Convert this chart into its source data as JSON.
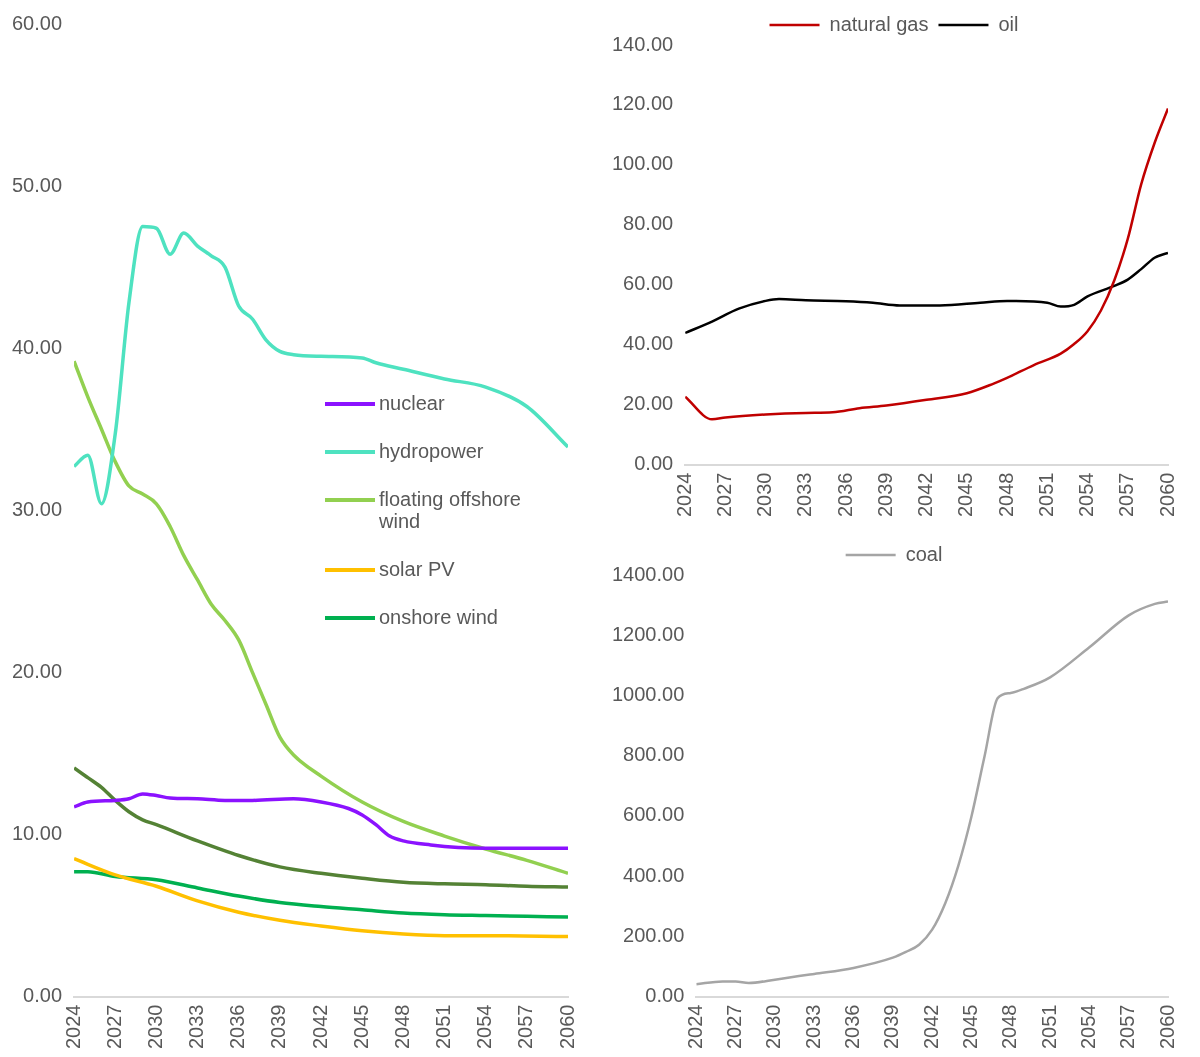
{
  "chart_data": [
    {
      "type": "line",
      "xlim": [
        2024,
        2060
      ],
      "xticks": [
        2024,
        2027,
        2030,
        2033,
        2036,
        2039,
        2042,
        2045,
        2048,
        2051,
        2054,
        2057,
        2060
      ],
      "ylim": [
        0,
        60
      ],
      "yticks": [
        {
          "value": 0,
          "label": "0.00"
        },
        {
          "value": 10,
          "label": "10.00"
        },
        {
          "value": 20,
          "label": "20.00"
        },
        {
          "value": 30,
          "label": "30.00"
        },
        {
          "value": 40,
          "label": "40.00"
        },
        {
          "value": 50,
          "label": "50.00"
        },
        {
          "value": 60,
          "label": "60.00"
        }
      ],
      "grid": false,
      "legend": "center right",
      "series": [
        {
          "name": "nuclear",
          "color": "#8b12ff",
          "x": [
            2024,
            2025,
            2027,
            2028,
            2029,
            2030,
            2031,
            2033,
            2035,
            2037,
            2040,
            2042,
            2044,
            2045,
            2046,
            2047,
            2048,
            2050,
            2052,
            2054,
            2060
          ],
          "values": [
            11.7,
            12.0,
            12.1,
            12.2,
            12.5,
            12.4,
            12.25,
            12.2,
            12.1,
            12.1,
            12.2,
            12.0,
            11.6,
            11.2,
            10.6,
            9.9,
            9.6,
            9.35,
            9.2,
            9.15,
            9.15
          ]
        },
        {
          "name": "hydropower",
          "color": "#4ee2c0",
          "x": [
            2024,
            2025,
            2026,
            2027,
            2028,
            2029,
            2030,
            2031,
            2032,
            2033,
            2034,
            2035,
            2036,
            2037,
            2038,
            2039,
            2040,
            2042,
            2045,
            2046,
            2048,
            2051,
            2054,
            2057,
            2060
          ],
          "values": [
            32.7,
            33.4,
            30.4,
            34.7,
            42.8,
            47.5,
            47.4,
            45.8,
            47.1,
            46.3,
            45.7,
            45.0,
            42.6,
            41.8,
            40.5,
            39.8,
            39.6,
            39.5,
            39.4,
            39.1,
            38.7,
            38.1,
            37.6,
            36.4,
            33.9
          ]
        },
        {
          "name": "floating offshore wind",
          "color": "#92d050",
          "x": [
            2024,
            2025,
            2026,
            2027,
            2028,
            2029,
            2030,
            2031,
            2032,
            2033,
            2034,
            2035,
            2036,
            2037,
            2038,
            2039,
            2040,
            2042,
            2045,
            2048,
            2051,
            2054,
            2057,
            2060
          ],
          "values": [
            39.2,
            37,
            35,
            33,
            31.5,
            31,
            30.4,
            29,
            27.2,
            25.7,
            24.2,
            23.2,
            22,
            20,
            18,
            16,
            14.9,
            13.6,
            12.0,
            10.8,
            9.9,
            9.1,
            8.4,
            7.6
          ]
        },
        {
          "name": "solar PV",
          "color": "#ffc000",
          "x": [
            2024,
            2027,
            2030,
            2033,
            2036,
            2039,
            2042,
            2045,
            2048,
            2051,
            2054,
            2060
          ],
          "values": [
            8.5,
            7.5,
            6.8,
            5.9,
            5.2,
            4.7,
            4.35,
            4.05,
            3.85,
            3.75,
            3.75,
            3.7
          ]
        },
        {
          "name": "onshore wind",
          "color": "#00b050",
          "x": [
            2024,
            2025,
            2027,
            2030,
            2033,
            2036,
            2039,
            2042,
            2045,
            2048,
            2051,
            2054,
            2057,
            2060
          ],
          "values": [
            7.7,
            7.7,
            7.4,
            7.2,
            6.7,
            6.2,
            5.8,
            5.55,
            5.35,
            5.15,
            5.05,
            5.0,
            4.95,
            4.9
          ]
        },
        {
          "color": "#548235",
          "x": [
            2024,
            2025,
            2026,
            2027,
            2028,
            2029,
            2030,
            2033,
            2036,
            2039,
            2042,
            2045,
            2048,
            2051,
            2054,
            2057,
            2060
          ],
          "values": [
            14.1,
            13.5,
            12.9,
            12.1,
            11.4,
            10.9,
            10.6,
            9.6,
            8.7,
            8.0,
            7.6,
            7.3,
            7.05,
            6.95,
            6.9,
            6.8,
            6.75
          ]
        }
      ]
    },
    {
      "type": "line",
      "xlim": [
        2024,
        2060
      ],
      "xticks": [
        2024,
        2027,
        2030,
        2033,
        2036,
        2039,
        2042,
        2045,
        2048,
        2051,
        2054,
        2057,
        2060
      ],
      "ylim": [
        0,
        140
      ],
      "yticks": [
        {
          "value": 0,
          "label": "0.00"
        },
        {
          "value": 20,
          "label": "20.00"
        },
        {
          "value": 40,
          "label": "40.00"
        },
        {
          "value": 60,
          "label": "60.00"
        },
        {
          "value": 80,
          "label": "80.00"
        },
        {
          "value": 100,
          "label": "100.00"
        },
        {
          "value": 120,
          "label": "120.00"
        },
        {
          "value": 140,
          "label": "140.00"
        }
      ],
      "grid": false,
      "legend": "top",
      "series": [
        {
          "name": "natural gas",
          "color": "#c00000",
          "x": [
            2024,
            2026,
            2027,
            2030,
            2033,
            2035,
            2037,
            2039,
            2042,
            2045,
            2047,
            2048,
            2050,
            2052,
            2053,
            2054,
            2055,
            2056,
            2057,
            2058,
            2059,
            2060
          ],
          "values": [
            22.6,
            15.1,
            15.7,
            16.7,
            17.2,
            17.4,
            18.8,
            19.7,
            21.6,
            23.8,
            27,
            28.9,
            33.2,
            37,
            40.2,
            44.5,
            51.4,
            61.5,
            75.3,
            93.5,
            107.3,
            118.8
          ]
        },
        {
          "name": "oil",
          "color": "#000000",
          "x": [
            2024,
            2026,
            2028,
            2030,
            2031,
            2033,
            2036,
            2038,
            2040,
            2043,
            2046,
            2048,
            2051,
            2052,
            2053,
            2054,
            2056,
            2057,
            2058,
            2059,
            2060
          ],
          "values": [
            43.9,
            47.7,
            52,
            54.6,
            55.2,
            54.8,
            54.5,
            54,
            53.1,
            53.1,
            54,
            54.6,
            54,
            52.7,
            53.3,
            56.1,
            59.6,
            61.7,
            65.2,
            69,
            70.6
          ]
        }
      ]
    },
    {
      "type": "line",
      "xlim": [
        2024,
        2060
      ],
      "xticks": [
        2024,
        2027,
        2030,
        2033,
        2036,
        2039,
        2042,
        2045,
        2048,
        2051,
        2054,
        2057,
        2060
      ],
      "ylim": [
        0,
        1400
      ],
      "yticks": [
        {
          "value": 0,
          "label": "0.00"
        },
        {
          "value": 200,
          "label": "200.00"
        },
        {
          "value": 400,
          "label": "400.00"
        },
        {
          "value": 600,
          "label": "600.00"
        },
        {
          "value": 800,
          "label": "800.00"
        },
        {
          "value": 1000,
          "label": "1000.00"
        },
        {
          "value": 1200,
          "label": "1200.00"
        },
        {
          "value": 1400,
          "label": "1400.00"
        }
      ],
      "grid": false,
      "legend": "top",
      "series": [
        {
          "name": "coal",
          "color": "#a5a5a5",
          "x": [
            2024,
            2026,
            2027,
            2028,
            2030,
            2033,
            2036,
            2039,
            2040,
            2041,
            2042,
            2043,
            2044,
            2045,
            2046,
            2047,
            2048,
            2049,
            2051,
            2054,
            2057,
            2059,
            2060
          ],
          "values": [
            41,
            50,
            50,
            45,
            56,
            75,
            95,
            129,
            148,
            172,
            222,
            310,
            435,
            598,
            798,
            991,
            1008,
            1022,
            1060,
            1160,
            1266,
            1304,
            1312
          ]
        }
      ]
    }
  ]
}
